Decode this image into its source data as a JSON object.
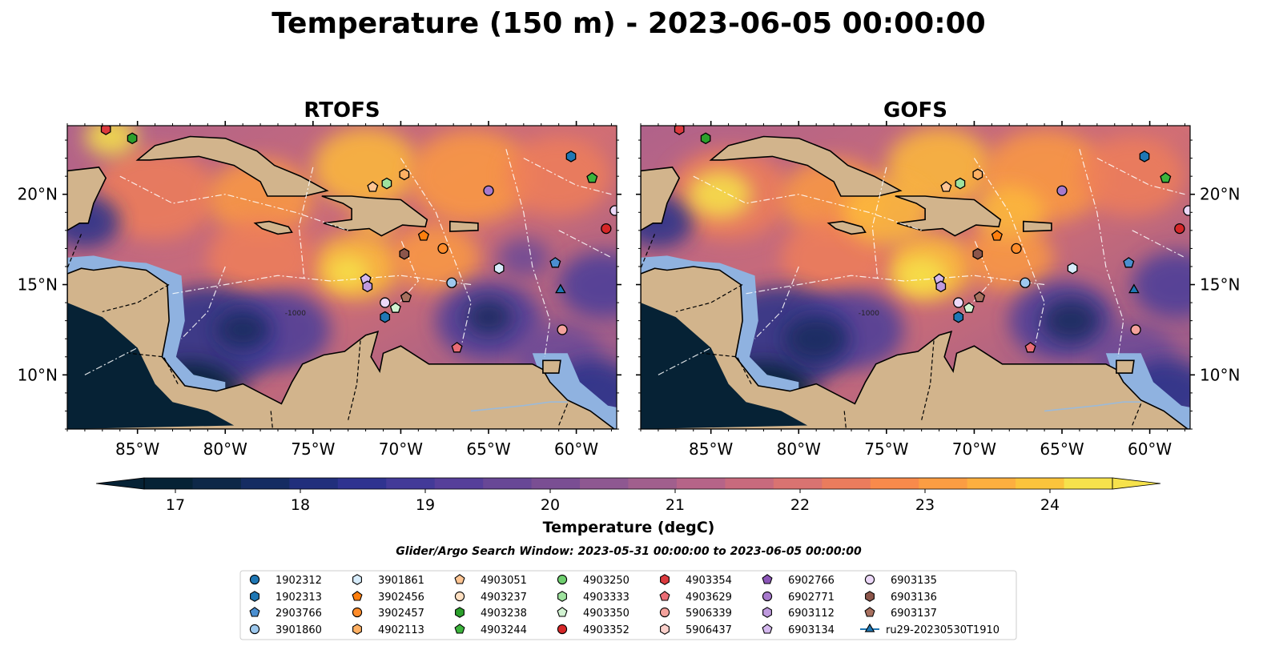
{
  "figure": {
    "title": "Temperature (150 m) - 2023-06-05 00:00:00",
    "search_window": "Glider/Argo Search Window: 2023-05-31 00:00:00 to 2023-06-05 00:00:00"
  },
  "colors": {
    "land": "#d2b48c",
    "shelf": "#8fb2e0",
    "gradient": [
      "#062235",
      "#122b5b",
      "#28328a",
      "#4a3d9a",
      "#6a4a97",
      "#8c5792",
      "#b0628a",
      "#d06e75",
      "#ee7e5a",
      "#fb9a42",
      "#fdba3b",
      "#f6e44a",
      "#f5f86a"
    ]
  },
  "chart_data": [
    {
      "type": "heatmap",
      "title": "RTOFS",
      "x_tick_labels": [
        "85°W",
        "80°W",
        "75°W",
        "70°W",
        "65°W",
        "60°W"
      ],
      "y_tick_labels": [
        "20°N",
        "15°N",
        "10°N"
      ],
      "xlim": [
        -89.0,
        -57.7
      ],
      "ylim": [
        7.0,
        23.8
      ],
      "x_ticks": [
        -85,
        -80,
        -75,
        -70,
        -65,
        -60
      ],
      "y_ticks": [
        20,
        15,
        10
      ],
      "contour_label": "-1000",
      "ylabel_side": "left"
    },
    {
      "type": "heatmap",
      "title": "GOFS",
      "x_tick_labels": [
        "85°W",
        "80°W",
        "75°W",
        "70°W",
        "65°W",
        "60°W"
      ],
      "y_tick_labels": [
        "20°N",
        "15°N",
        "10°N"
      ],
      "xlim": [
        -89.0,
        -57.7
      ],
      "ylim": [
        7.0,
        23.8
      ],
      "x_ticks": [
        -85,
        -80,
        -75,
        -70,
        -65,
        -60
      ],
      "y_ticks": [
        20,
        15,
        10
      ],
      "contour_label": "-1000",
      "ylabel_side": "right"
    }
  ],
  "colorbar": {
    "label": "Temperature (degC)",
    "tick_labels": [
      "17",
      "18",
      "19",
      "20",
      "21",
      "22",
      "23",
      "24"
    ],
    "range": [
      16.75,
      24.5
    ],
    "colors": [
      "#062235",
      "#0e2848",
      "#152c62",
      "#212f7c",
      "#2f3390",
      "#433a98",
      "#563f9a",
      "#684796",
      "#7a4e93",
      "#8e5891",
      "#a15f8d",
      "#b66488",
      "#c86a7d",
      "#d97371",
      "#ea7c5d",
      "#f88a4b",
      "#fb9d43",
      "#fdaf3f",
      "#fbc43c",
      "#f6e24c"
    ]
  },
  "legend": {
    "items": [
      {
        "label": "1902312",
        "marker": "circle",
        "color": "#1f77b4"
      },
      {
        "label": "1902313",
        "marker": "hexagon",
        "color": "#1f77b4"
      },
      {
        "label": "2903766",
        "marker": "pentagon",
        "color": "#4b8fd0"
      },
      {
        "label": "3901860",
        "marker": "circle",
        "color": "#9ec9ee"
      },
      {
        "label": "3901861",
        "marker": "hexagon",
        "color": "#d7ecfb"
      },
      {
        "label": "3902456",
        "marker": "pentagon",
        "color": "#ff7f0e"
      },
      {
        "label": "3902457",
        "marker": "circle",
        "color": "#ff8c2a"
      },
      {
        "label": "4902113",
        "marker": "hexagon",
        "color": "#ffb063"
      },
      {
        "label": "4903051",
        "marker": "pentagon",
        "color": "#ffc593"
      },
      {
        "label": "4903237",
        "marker": "circle",
        "color": "#ffe0c2"
      },
      {
        "label": "4903238",
        "marker": "hexagon",
        "color": "#2ca02c"
      },
      {
        "label": "4903244",
        "marker": "pentagon",
        "color": "#3cb43c"
      },
      {
        "label": "4903250",
        "marker": "circle",
        "color": "#6fcf6f"
      },
      {
        "label": "4903333",
        "marker": "hexagon",
        "color": "#9ee29e"
      },
      {
        "label": "4903350",
        "marker": "pentagon",
        "color": "#d2f3d2"
      },
      {
        "label": "4903352",
        "marker": "circle",
        "color": "#d62728"
      },
      {
        "label": "4903354",
        "marker": "hexagon",
        "color": "#dc3a3e"
      },
      {
        "label": "4903629",
        "marker": "pentagon",
        "color": "#ea6c75"
      },
      {
        "label": "5906339",
        "marker": "circle",
        "color": "#f4a29c"
      },
      {
        "label": "5906437",
        "marker": "hexagon",
        "color": "#fbd0cb"
      },
      {
        "label": "6902766",
        "marker": "pentagon",
        "color": "#8c56b8"
      },
      {
        "label": "6902771",
        "marker": "circle",
        "color": "#a779cc"
      },
      {
        "label": "6903112",
        "marker": "hexagon",
        "color": "#bf9ade"
      },
      {
        "label": "6903134",
        "marker": "pentagon",
        "color": "#d4b8ee"
      },
      {
        "label": "6903135",
        "marker": "circle",
        "color": "#ecd8f8"
      },
      {
        "label": "6903136",
        "marker": "hexagon",
        "color": "#8c564b"
      },
      {
        "label": "6903137",
        "marker": "pentagon",
        "color": "#a8705f"
      },
      {
        "label": "ru29-20230530T1910",
        "marker": "triangle-line",
        "color": "#1f77b4"
      }
    ]
  },
  "markers": [
    {
      "label": "1902313",
      "lon": -60.3,
      "lat": 22.1
    },
    {
      "label": "4903244",
      "lon": -59.1,
      "lat": 20.9
    },
    {
      "label": "6902771",
      "lon": -65.0,
      "lat": 20.2
    },
    {
      "label": "6903135",
      "lon": -57.8,
      "lat": 19.1
    },
    {
      "label": "4903352",
      "lon": -58.3,
      "lat": 18.1
    },
    {
      "label": "3902456",
      "lon": -68.7,
      "lat": 17.7
    },
    {
      "label": "3902457",
      "lon": -67.6,
      "lat": 17.0
    },
    {
      "label": "6903136",
      "lon": -69.8,
      "lat": 16.7
    },
    {
      "label": "3901861",
      "lon": -64.4,
      "lat": 15.9
    },
    {
      "label": "2903766",
      "lon": -61.2,
      "lat": 16.2
    },
    {
      "label": "3901860",
      "lon": -67.1,
      "lat": 15.1
    },
    {
      "label": "ru29-20230530T1910",
      "lon": -60.9,
      "lat": 14.7
    },
    {
      "label": "6903134",
      "lon": -72.0,
      "lat": 15.3
    },
    {
      "label": "6903112",
      "lon": -71.9,
      "lat": 14.9
    },
    {
      "label": "6903137",
      "lon": -69.7,
      "lat": 14.3
    },
    {
      "label": "6903135",
      "lon": -70.9,
      "lat": 14.0
    },
    {
      "label": "4903350",
      "lon": -70.3,
      "lat": 13.7
    },
    {
      "label": "1902313",
      "lon": -70.9,
      "lat": 13.2
    },
    {
      "label": "5906339",
      "lon": -60.8,
      "lat": 12.5
    },
    {
      "label": "4903629",
      "lon": -66.8,
      "lat": 11.5
    },
    {
      "label": "4903238",
      "lon": -85.3,
      "lat": 23.1
    },
    {
      "label": "4903354",
      "lon": -86.8,
      "lat": 23.6
    },
    {
      "label": "4903051",
      "lon": -71.6,
      "lat": 20.4
    },
    {
      "label": "4903333",
      "lon": -70.8,
      "lat": 20.6
    },
    {
      "label": "4902113",
      "lon": -69.8,
      "lat": 21.1
    }
  ]
}
